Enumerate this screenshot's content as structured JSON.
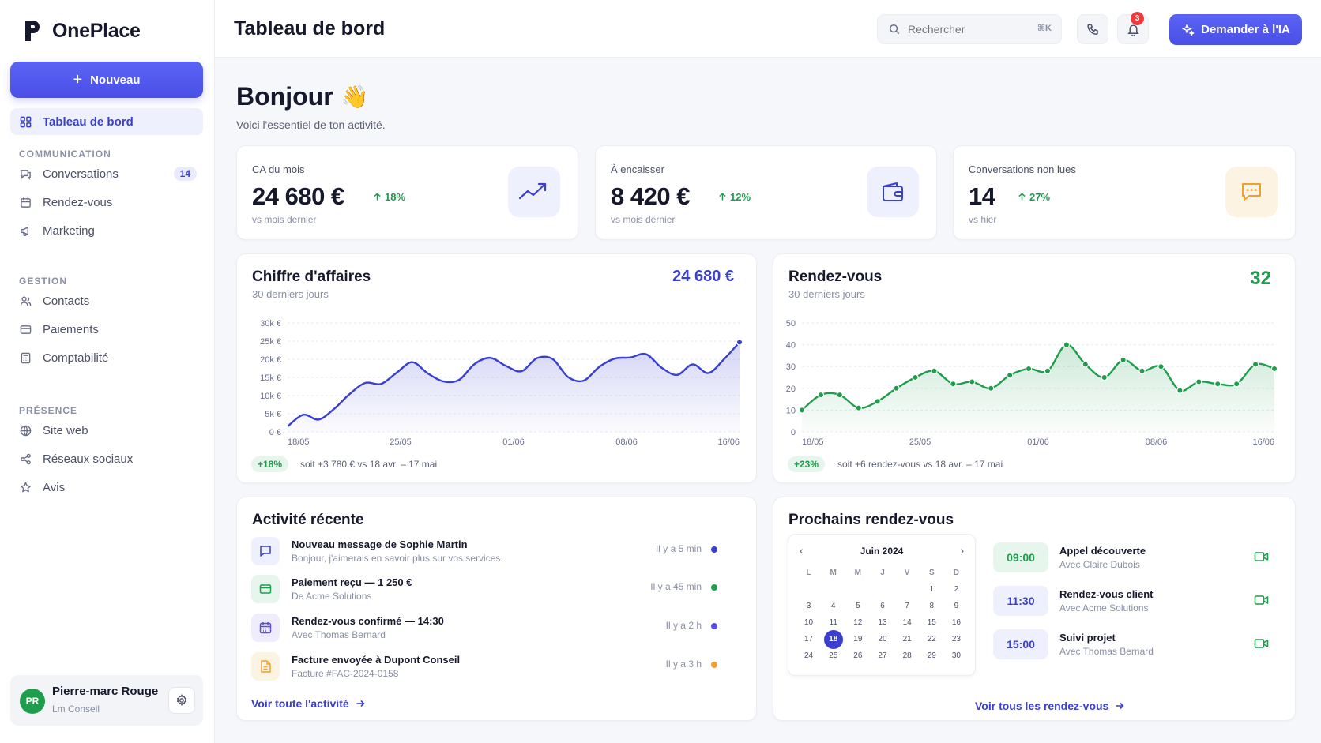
{
  "app": {
    "name": "OnePlace"
  },
  "sidebar": {
    "new_label": "Nouveau",
    "active_item": "Tableau de bord",
    "sections": [
      {
        "title": "COMMUNICATION",
        "items": [
          {
            "label": "Conversations",
            "icon": "chat-icon",
            "badge": "14"
          },
          {
            "label": "Rendez-vous",
            "icon": "calendar-icon"
          },
          {
            "label": "Marketing",
            "icon": "megaphone-icon"
          }
        ]
      },
      {
        "title": "GESTION",
        "items": [
          {
            "label": "Contacts",
            "icon": "users-icon"
          },
          {
            "label": "Paiements",
            "icon": "card-icon"
          },
          {
            "label": "Comptabilité",
            "icon": "calculator-icon"
          }
        ]
      },
      {
        "title": "PRÉSENCE",
        "items": [
          {
            "label": "Site web",
            "icon": "globe-icon"
          },
          {
            "label": "Réseaux sociaux",
            "icon": "share-icon"
          },
          {
            "label": "Avis",
            "icon": "star-icon"
          }
        ]
      }
    ],
    "user": {
      "initials": "PR",
      "name": "Pierre-marc Rouge",
      "org": "Lm Conseil"
    }
  },
  "topbar": {
    "title": "Tableau de bord",
    "search_placeholder": "Rechercher",
    "search_shortcut": "⌘K",
    "notifications": "3",
    "ai_label": "Demander à l'IA"
  },
  "greeting": {
    "title": "Bonjour",
    "emoji": "👋",
    "subtitle": "Voici l'essentiel de ton activité."
  },
  "kpis": [
    {
      "label": "CA du mois",
      "value": "24 680 €",
      "delta": "18%",
      "sub": "vs mois dernier",
      "icon": "trend-up-icon"
    },
    {
      "label": "À encaisser",
      "value": "8 420 €",
      "delta": "12%",
      "sub": "vs mois dernier",
      "icon": "wallet-icon"
    },
    {
      "label": "Conversations non lues",
      "value": "14",
      "delta": "27%",
      "sub": "vs hier",
      "icon": "message-icon"
    }
  ],
  "revenue": {
    "title": "Chiffre d'affaires",
    "subtitle": "30 derniers jours",
    "total": "24 680 €",
    "pill": "+18%",
    "note": "soit +3 780 € vs 18 avr. – 17 mai",
    "color": "#3a3fcf"
  },
  "appointments_chart": {
    "title": "Rendez-vous",
    "subtitle": "30 derniers jours",
    "total": "32",
    "pill": "+23%",
    "note": "soit +6 rendez-vous vs 18 avr. – 17 mai",
    "color": "#1f9d4d"
  },
  "chart_data": [
    {
      "type": "area",
      "ylim": [
        0,
        30000
      ],
      "y_ticks": [
        "0 €",
        "5k €",
        "10k €",
        "15k €",
        "20k €",
        "25k €",
        "30k €"
      ],
      "x_ticks": [
        "18/05",
        "25/05",
        "01/06",
        "08/06",
        "16/06"
      ],
      "values": [
        1500,
        4700,
        3400,
        6400,
        10500,
        13500,
        13200,
        16300,
        19200,
        16100,
        13900,
        14300,
        18700,
        20400,
        18200,
        16700,
        20300,
        20100,
        15100,
        14100,
        17900,
        20200,
        20500,
        21400,
        17700,
        15700,
        18600,
        16200,
        20000,
        24700
      ]
    },
    {
      "type": "line",
      "ylim": [
        0,
        50
      ],
      "y_ticks": [
        "0",
        "10",
        "20",
        "30",
        "40",
        "50"
      ],
      "x_ticks": [
        "18/05",
        "25/05",
        "01/06",
        "08/06",
        "16/06"
      ],
      "values": [
        10,
        17,
        17,
        11,
        14,
        20,
        25,
        28,
        22,
        23,
        20,
        26,
        29,
        28,
        40,
        31,
        25,
        33,
        28,
        30,
        19,
        23,
        22,
        22,
        31,
        29
      ]
    }
  ],
  "activity": {
    "title": "Activité récente",
    "items": [
      {
        "title": "Nouveau message de Sophie Martin",
        "sub": "Bonjour, j'aimerais en savoir plus sur vos services.",
        "time": "Il y a 5 min",
        "icon": "chat-icon",
        "color": "#3a3fcf"
      },
      {
        "title": "Paiement reçu  —  1 250 €",
        "sub": "De Acme Solutions",
        "time": "Il y a 45 min",
        "icon": "card-icon",
        "color": "#1f9d4d"
      },
      {
        "title": "Rendez-vous confirmé  —  14:30",
        "sub": "Avec Thomas Bernard",
        "time": "Il y a 2 h",
        "icon": "calendar-icon",
        "color": "#5b4fe6"
      },
      {
        "title": "Facture envoyée à Dupont Conseil",
        "sub": "Facture #FAC-2024-0158",
        "time": "Il y a 3 h",
        "icon": "document-icon",
        "color": "#f0a030"
      }
    ],
    "link": "Voir toute l'activité"
  },
  "upcoming": {
    "title": "Prochains rendez-vous",
    "calendar": {
      "month": "Juin 2024",
      "weekdays": [
        "L",
        "M",
        "M",
        "J",
        "V",
        "S",
        "D"
      ],
      "days": [
        "",
        "",
        "",
        "",
        "",
        "1",
        "2",
        "3",
        "4",
        "5",
        "6",
        "7",
        "8",
        "9",
        "10",
        "11",
        "12",
        "13",
        "14",
        "15",
        "16",
        "17",
        "18",
        "19",
        "20",
        "21",
        "22",
        "23",
        "24",
        "25",
        "26",
        "27",
        "28",
        "29",
        "30"
      ],
      "selected": "18"
    },
    "items": [
      {
        "time": "09:00",
        "title": "Appel découverte",
        "sub": "Avec Claire Dubois"
      },
      {
        "time": "11:30",
        "title": "Rendez-vous client",
        "sub": "Avec Acme Solutions"
      },
      {
        "time": "15:00",
        "title": "Suivi projet",
        "sub": "Avec Thomas Bernard"
      }
    ],
    "link": "Voir tous les rendez-vous"
  }
}
